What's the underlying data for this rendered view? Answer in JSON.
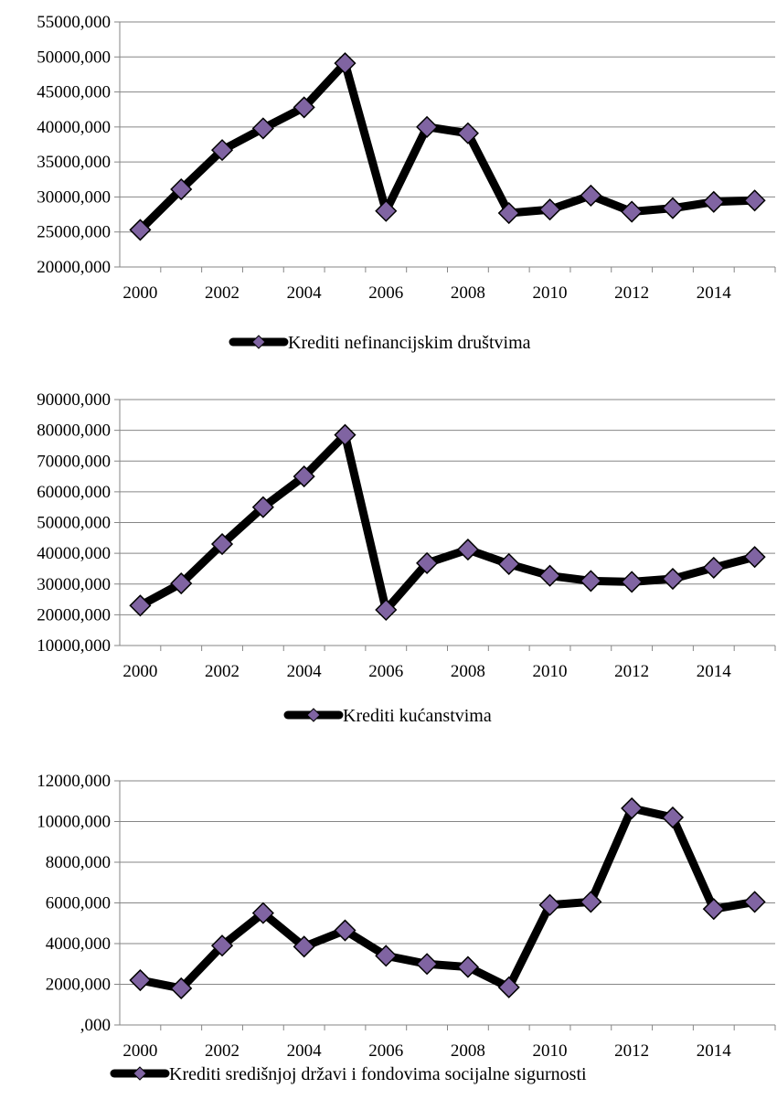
{
  "chart_data": [
    {
      "type": "line",
      "x": [
        2000,
        2001,
        2002,
        2003,
        2004,
        2005,
        2006,
        2007,
        2008,
        2009,
        2010,
        2011,
        2012,
        2013,
        2014,
        2015
      ],
      "x_tick_labels": [
        "2000",
        "2002",
        "2004",
        "2006",
        "2008",
        "2010",
        "2012",
        "2014"
      ],
      "ylim": [
        20000,
        55000
      ],
      "y_tick_labels": [
        "20000,000",
        "25000,000",
        "30000,000",
        "35000,000",
        "40000,000",
        "45000,000",
        "50000,000",
        "55000,000"
      ],
      "grid": "horizontal",
      "legend_position": "bottom",
      "series": [
        {
          "name": "Krediti nefinancijskim društvima",
          "values": [
            25300,
            31100,
            36700,
            39800,
            42800,
            49100,
            28000,
            40000,
            39100,
            27700,
            28200,
            30200,
            27900,
            28400,
            29300,
            29500
          ]
        }
      ]
    },
    {
      "type": "line",
      "x": [
        2000,
        2001,
        2002,
        2003,
        2004,
        2005,
        2006,
        2007,
        2008,
        2009,
        2010,
        2011,
        2012,
        2013,
        2014,
        2015
      ],
      "x_tick_labels": [
        "2000",
        "2002",
        "2004",
        "2006",
        "2008",
        "2010",
        "2012",
        "2014"
      ],
      "ylim": [
        10000,
        90000
      ],
      "y_tick_labels": [
        "10000,000",
        "20000,000",
        "30000,000",
        "40000,000",
        "50000,000",
        "60000,000",
        "70000,000",
        "80000,000",
        "90000,000"
      ],
      "grid": "horizontal",
      "legend_position": "bottom",
      "series": [
        {
          "name": "Krediti kućanstvima",
          "values": [
            23000,
            30200,
            43000,
            55000,
            65000,
            78500,
            21600,
            36800,
            41200,
            36500,
            32700,
            31000,
            30700,
            31700,
            35300,
            38800
          ]
        }
      ]
    },
    {
      "type": "line",
      "x": [
        2000,
        2001,
        2002,
        2003,
        2004,
        2005,
        2006,
        2007,
        2008,
        2009,
        2010,
        2011,
        2012,
        2013,
        2014,
        2015
      ],
      "x_tick_labels": [
        "2000",
        "2002",
        "2004",
        "2006",
        "2008",
        "2010",
        "2012",
        "2014"
      ],
      "ylim": [
        0,
        12000
      ],
      "y_tick_labels": [
        ",000",
        "2000,000",
        "4000,000",
        "6000,000",
        "8000,000",
        "10000,000",
        "12000,000"
      ],
      "grid": "horizontal",
      "legend_position": "bottom",
      "series": [
        {
          "name": "Krediti središnjoj državi i fondovima socijalne sigurnosti",
          "values": [
            2200,
            1800,
            3900,
            5500,
            3850,
            4650,
            3400,
            3000,
            2850,
            1850,
            5900,
            6050,
            10650,
            10200,
            5700,
            6050
          ]
        }
      ]
    }
  ],
  "style": {
    "line_color": "#000000",
    "marker_fill": "#8064a2",
    "marker_stroke": "#000000",
    "grid_color": "#868686",
    "axis_color": "#868686"
  }
}
